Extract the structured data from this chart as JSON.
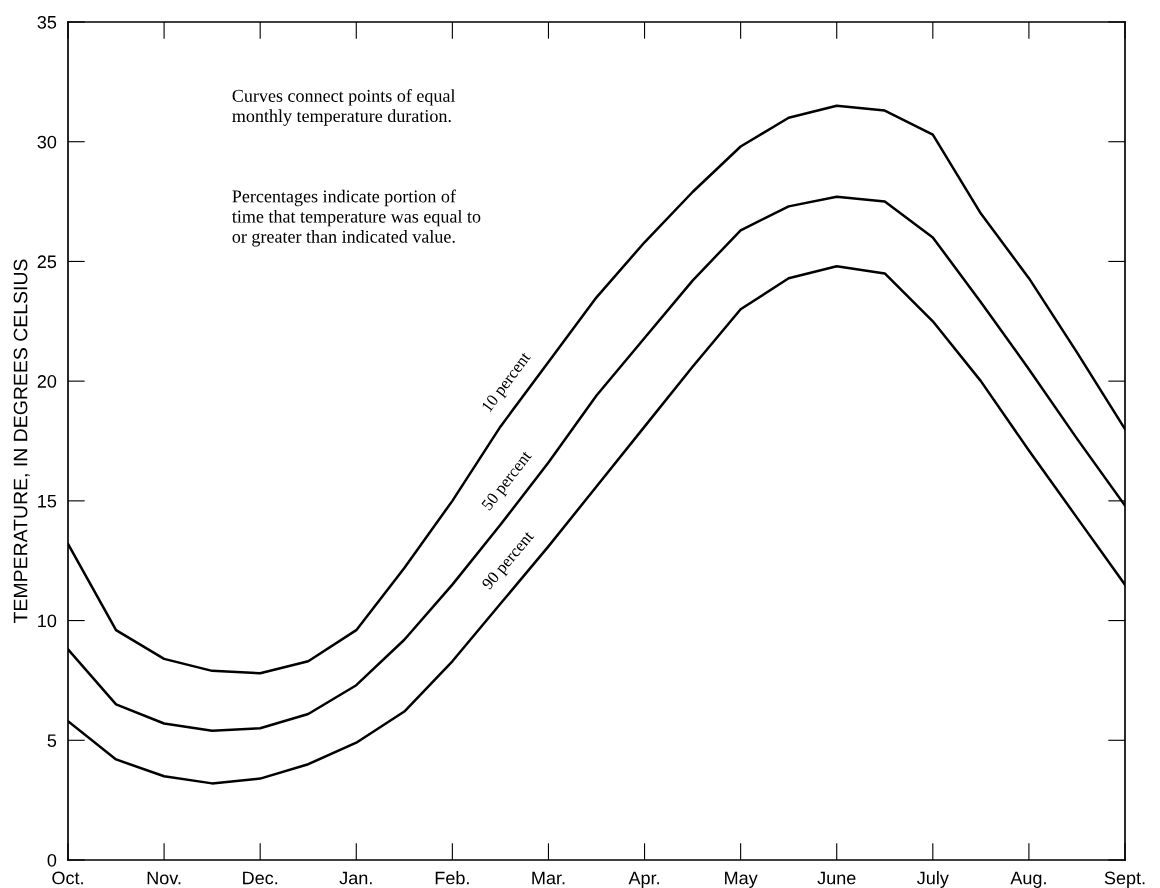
{
  "chart_data": {
    "type": "line",
    "ylabel": "TEMPERATURE, IN DEGREES CELSIUS",
    "annotations": [
      "Curves connect points of equal\nmonthly temperature duration.",
      "Percentages indicate portion of\ntime that temperature was equal to\nor greater than indicated value."
    ],
    "categories": [
      "Oct.",
      null,
      "Nov.",
      null,
      "Dec.",
      null,
      "Jan.",
      null,
      "Feb.",
      null,
      "Mar.",
      null,
      "Apr.",
      null,
      "May",
      null,
      "June",
      null,
      "July",
      null,
      "Aug.",
      null,
      "Sept."
    ],
    "series": [
      {
        "name": "10 percent",
        "color": "#000000",
        "values": [
          13.2,
          9.6,
          8.4,
          7.9,
          7.8,
          8.3,
          9.6,
          12.2,
          15.0,
          18.1,
          20.8,
          23.5,
          25.8,
          27.9,
          29.8,
          31.0,
          31.5,
          31.3,
          30.3,
          27.0,
          24.3,
          21.2,
          18.0
        ]
      },
      {
        "name": "50 percent",
        "color": "#000000",
        "values": [
          8.8,
          6.5,
          5.7,
          5.4,
          5.5,
          6.1,
          7.3,
          9.2,
          11.5,
          14.0,
          16.6,
          19.4,
          21.8,
          24.2,
          26.3,
          27.3,
          27.7,
          27.5,
          26.0,
          23.3,
          20.5,
          17.6,
          14.8
        ]
      },
      {
        "name": "90 percent",
        "color": "#000000",
        "values": [
          5.8,
          4.2,
          3.5,
          3.2,
          3.4,
          4.0,
          4.9,
          6.2,
          8.3,
          10.7,
          13.1,
          15.6,
          18.1,
          20.6,
          23.0,
          24.3,
          24.8,
          24.5,
          22.5,
          20.0,
          17.1,
          14.3,
          11.5
        ]
      }
    ],
    "ylim": [
      0,
      35
    ],
    "yticks": [
      0,
      5,
      10,
      15,
      20,
      25,
      30,
      35
    ],
    "grid": false,
    "legend": false,
    "marker": "none",
    "line_style": "solid"
  }
}
